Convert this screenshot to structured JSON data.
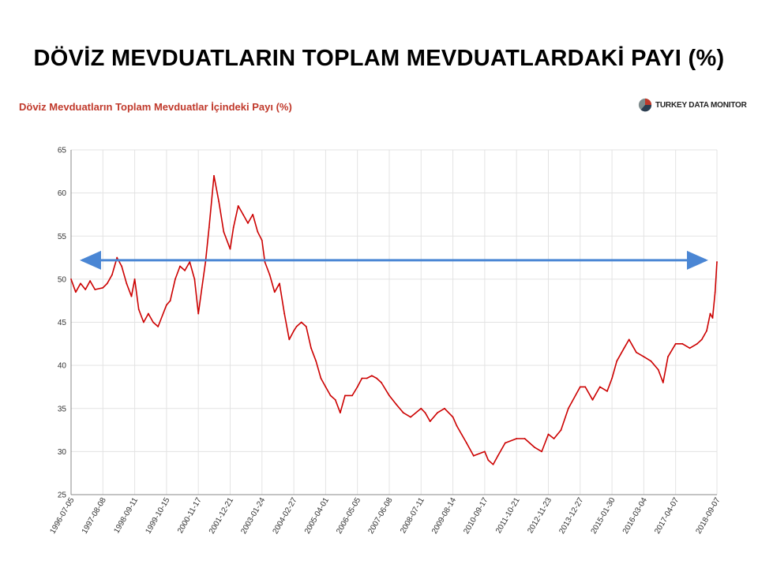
{
  "slide": {
    "title": "DÖVİZ MEVDUATLARIN TOPLAM MEVDUATLARDAKİ PAYI (%)"
  },
  "brand": {
    "name_part1": "TURKEY DATA ",
    "name_part2": "MONITOR",
    "logo_colors": [
      "#c0392b",
      "#2c3e50",
      "#7f8c8d"
    ]
  },
  "colors": {
    "series": "#cc0000",
    "reference_arrow": "#4a86d4",
    "grid": "#e3e3e3",
    "subtitle": "#c0392b"
  },
  "chart_data": {
    "type": "line",
    "title": "Döviz Mevduatların Toplam Mevduatlar İçindeki Payı (%)",
    "xlabel": "",
    "ylabel": "",
    "ylim": [
      25,
      65
    ],
    "yticks": [
      25,
      30,
      35,
      40,
      45,
      50,
      55,
      60,
      65
    ],
    "x_tick_labels": [
      "1996-07-05",
      "1997-08-08",
      "1998-09-11",
      "1999-10-15",
      "2000-11-17",
      "2001-12-21",
      "2003-01-24",
      "2004-02-27",
      "2005-04-01",
      "2006-05-05",
      "2007-06-08",
      "2008-07-11",
      "2009-08-14",
      "2010-09-17",
      "2011-10-21",
      "2012-11-23",
      "2013-12-27",
      "2015-01-30",
      "2016-03-04",
      "2017-04-07",
      "2018-09-07"
    ],
    "grid": true,
    "legend": "none",
    "series": [
      {
        "points": [
          [
            "1996-07-05",
            50.0
          ],
          [
            "1996-09-01",
            48.5
          ],
          [
            "1996-11-01",
            49.5
          ],
          [
            "1997-01-01",
            48.8
          ],
          [
            "1997-03-01",
            49.8
          ],
          [
            "1997-05-01",
            48.8
          ],
          [
            "1997-08-08",
            49.0
          ],
          [
            "1997-10-01",
            49.5
          ],
          [
            "1997-12-01",
            50.5
          ],
          [
            "1998-02-01",
            52.5
          ],
          [
            "1998-04-01",
            51.5
          ],
          [
            "1998-06-01",
            49.5
          ],
          [
            "1998-08-01",
            48.0
          ],
          [
            "1998-09-11",
            50.0
          ],
          [
            "1998-11-01",
            46.5
          ],
          [
            "1999-01-01",
            45.0
          ],
          [
            "1999-03-01",
            46.0
          ],
          [
            "1999-05-01",
            45.0
          ],
          [
            "1999-07-01",
            44.5
          ],
          [
            "1999-10-15",
            47.0
          ],
          [
            "1999-12-01",
            47.5
          ],
          [
            "2000-02-01",
            50.0
          ],
          [
            "2000-04-01",
            51.5
          ],
          [
            "2000-06-01",
            51.0
          ],
          [
            "2000-08-01",
            52.0
          ],
          [
            "2000-10-01",
            50.0
          ],
          [
            "2000-11-17",
            46.0
          ],
          [
            "2001-01-01",
            49.0
          ],
          [
            "2001-02-15",
            52.0
          ],
          [
            "2001-04-01",
            56.0
          ],
          [
            "2001-06-01",
            62.0
          ],
          [
            "2001-08-01",
            59.0
          ],
          [
            "2001-10-01",
            55.5
          ],
          [
            "2001-12-21",
            53.5
          ],
          [
            "2002-02-01",
            56.0
          ],
          [
            "2002-04-01",
            58.5
          ],
          [
            "2002-06-01",
            57.5
          ],
          [
            "2002-08-01",
            56.5
          ],
          [
            "2002-10-01",
            57.5
          ],
          [
            "2002-12-01",
            55.5
          ],
          [
            "2003-01-24",
            54.5
          ],
          [
            "2003-03-01",
            52.0
          ],
          [
            "2003-05-01",
            50.5
          ],
          [
            "2003-07-01",
            48.5
          ],
          [
            "2003-09-01",
            49.5
          ],
          [
            "2003-11-01",
            46.0
          ],
          [
            "2004-01-01",
            43.0
          ],
          [
            "2004-02-27",
            44.0
          ],
          [
            "2004-04-01",
            44.5
          ],
          [
            "2004-06-01",
            45.0
          ],
          [
            "2004-08-01",
            44.5
          ],
          [
            "2004-10-01",
            42.0
          ],
          [
            "2004-12-01",
            40.5
          ],
          [
            "2005-02-01",
            38.5
          ],
          [
            "2005-04-01",
            37.5
          ],
          [
            "2005-06-01",
            36.5
          ],
          [
            "2005-08-01",
            36.0
          ],
          [
            "2005-10-01",
            34.5
          ],
          [
            "2005-12-01",
            36.5
          ],
          [
            "2006-03-01",
            36.5
          ],
          [
            "2006-05-05",
            37.5
          ],
          [
            "2006-07-01",
            38.5
          ],
          [
            "2006-09-01",
            38.5
          ],
          [
            "2006-11-01",
            38.8
          ],
          [
            "2007-01-01",
            38.5
          ],
          [
            "2007-03-01",
            38.0
          ],
          [
            "2007-06-08",
            36.5
          ],
          [
            "2007-09-01",
            35.5
          ],
          [
            "2007-12-01",
            34.5
          ],
          [
            "2008-03-01",
            34.0
          ],
          [
            "2008-07-11",
            35.0
          ],
          [
            "2008-09-01",
            34.5
          ],
          [
            "2008-11-01",
            33.5
          ],
          [
            "2009-02-01",
            34.5
          ],
          [
            "2009-05-01",
            35.0
          ],
          [
            "2009-08-14",
            34.0
          ],
          [
            "2009-10-01",
            33.0
          ],
          [
            "2009-12-01",
            32.0
          ],
          [
            "2010-02-01",
            31.0
          ],
          [
            "2010-05-01",
            29.5
          ],
          [
            "2010-09-17",
            30.0
          ],
          [
            "2010-11-01",
            29.0
          ],
          [
            "2011-01-01",
            28.5
          ],
          [
            "2011-03-01",
            29.5
          ],
          [
            "2011-06-01",
            31.0
          ],
          [
            "2011-10-21",
            31.5
          ],
          [
            "2012-02-01",
            31.5
          ],
          [
            "2012-06-01",
            30.5
          ],
          [
            "2012-09-01",
            30.0
          ],
          [
            "2012-11-23",
            32.0
          ],
          [
            "2013-02-01",
            31.5
          ],
          [
            "2013-05-01",
            32.5
          ],
          [
            "2013-08-01",
            35.0
          ],
          [
            "2013-12-27",
            37.5
          ],
          [
            "2014-03-01",
            37.5
          ],
          [
            "2014-06-01",
            36.0
          ],
          [
            "2014-09-01",
            37.5
          ],
          [
            "2014-12-01",
            37.0
          ],
          [
            "2015-01-30",
            38.5
          ],
          [
            "2015-04-01",
            40.5
          ],
          [
            "2015-07-01",
            42.0
          ],
          [
            "2015-09-01",
            43.0
          ],
          [
            "2015-12-01",
            41.5
          ],
          [
            "2016-03-04",
            41.0
          ],
          [
            "2016-06-01",
            40.5
          ],
          [
            "2016-09-01",
            39.5
          ],
          [
            "2016-11-01",
            38.0
          ],
          [
            "2017-01-01",
            41.0
          ],
          [
            "2017-04-07",
            42.5
          ],
          [
            "2017-07-01",
            42.5
          ],
          [
            "2017-10-01",
            42.0
          ],
          [
            "2018-01-01",
            42.5
          ],
          [
            "2018-03-01",
            43.0
          ],
          [
            "2018-05-01",
            44.0
          ],
          [
            "2018-06-15",
            46.0
          ],
          [
            "2018-07-15",
            45.5
          ],
          [
            "2018-08-15",
            48.5
          ],
          [
            "2018-09-07",
            52.0
          ]
        ]
      }
    ],
    "annotations": [
      {
        "type": "double-arrow",
        "x_from": "1996-07-05",
        "x_to": "2018-09-07",
        "y": 52.2
      }
    ]
  }
}
